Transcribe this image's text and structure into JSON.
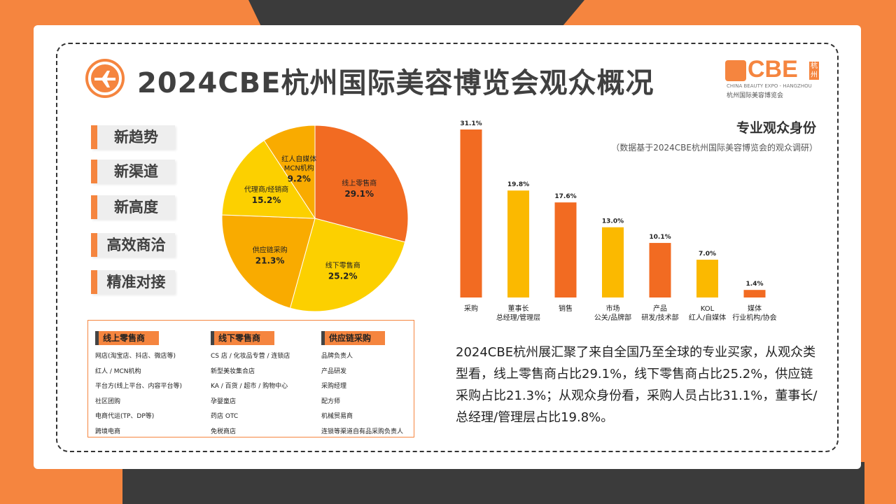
{
  "page": {
    "title": "2024CBE杭州国际美容博览会观众概况",
    "logo": {
      "main": "CBE",
      "hz": "杭州",
      "sub": "CHINA BEAUTY EXPO - HANGZHOU",
      "sub_cn": "杭州国际美容博览会"
    }
  },
  "tags": [
    "新趋势",
    "新渠道",
    "新高度",
    "高效商洽",
    "精准对接"
  ],
  "table": {
    "columns": [
      {
        "header": "线上零售商",
        "items": [
          "网店(淘宝店、抖店、微店等)",
          "红人 / MCN机构",
          "平台方(线上平台、内容平台等)",
          "社区团购",
          "电商代运(TP、DP等)",
          "跨境电商"
        ]
      },
      {
        "header": "线下零售商",
        "items": [
          "CS 店 / 化妆品专营 / 连锁店",
          "新型美妆集合店",
          "KA / 百货 / 超市 / 购物中心",
          "孕婴童店",
          "药店 OTC",
          "免税商店"
        ]
      },
      {
        "header": "供应链采购",
        "items": [
          "品牌负责人",
          "产品研发",
          "采购经理",
          "配方师",
          "机械贸易商",
          "连锁等渠道自有品采购负责人"
        ]
      }
    ]
  },
  "paragraph": "2024CBE杭州展汇聚了来自全国乃至全球的专业买家，从观众类型看，线上零售商占比29.1%，线下零售商占比25.2%，供应链采购占比21.3%；从观众身份看，采购人员占比31.1%，董事长/总经理/管理层占比19.8%。",
  "colors": {
    "orange": "#f5853f",
    "dark": "#3b3b3b",
    "pie_orange": "#f26b22",
    "pie_yellow": "#fcd000",
    "pie_amber": "#f9ab00",
    "bar_orange": "#f26b22",
    "bar_yellow": "#fbb900"
  },
  "chart_data": [
    {
      "type": "pie",
      "title": "",
      "slices": [
        {
          "label": "线上零售商",
          "value": 29.1,
          "value_label": "29.1%",
          "color": "#f26b22"
        },
        {
          "label": "线下零售商",
          "value": 25.2,
          "value_label": "25.2%",
          "color": "#fcd000"
        },
        {
          "label": "供应链采购",
          "value": 21.3,
          "value_label": "21.3%",
          "color": "#f9ab00"
        },
        {
          "label": "代理商/经销商",
          "value": 15.2,
          "value_label": "15.2%",
          "color": "#fcd000"
        },
        {
          "label": "红人自媒体MCN机构",
          "label_lines": [
            "红人自媒体",
            "MCN机构"
          ],
          "value": 9.2,
          "value_label": "9.2%",
          "color": "#f9ab00"
        }
      ]
    },
    {
      "type": "bar",
      "title": "专业观众身份",
      "subtitle": "（数据基于2024CBE杭州国际美容博览会的观众调研）",
      "categories": [
        [
          "采购"
        ],
        [
          "董事长",
          "总经理/管理层"
        ],
        [
          "销售"
        ],
        [
          "市场",
          "公关/品牌部"
        ],
        [
          "产品",
          "研发/技术部"
        ],
        [
          "KOL",
          "红人/自媒体"
        ],
        [
          "媒体",
          "行业机构/协会"
        ]
      ],
      "values": [
        31.1,
        19.8,
        17.6,
        13.0,
        10.1,
        7.0,
        1.4
      ],
      "value_labels": [
        "31.1%",
        "19.8%",
        "17.6%",
        "13.0%",
        "10.1%",
        "7.0%",
        "1.4%"
      ],
      "colors": [
        "#f26b22",
        "#fbb900",
        "#f26b22",
        "#fbb900",
        "#f26b22",
        "#fbb900",
        "#f26b22"
      ]
    }
  ]
}
